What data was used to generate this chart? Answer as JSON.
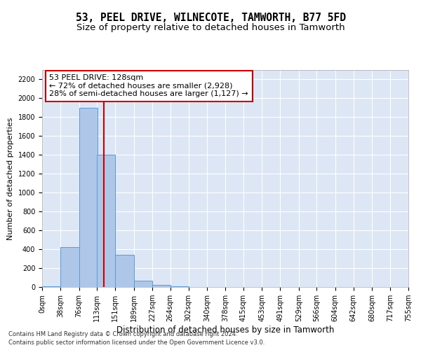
{
  "title": "53, PEEL DRIVE, WILNECOTE, TAMWORTH, B77 5FD",
  "subtitle": "Size of property relative to detached houses in Tamworth",
  "xlabel": "Distribution of detached houses by size in Tamworth",
  "ylabel": "Number of detached properties",
  "bin_edges": [
    0,
    38,
    76,
    113,
    151,
    189,
    227,
    264,
    302,
    340,
    378,
    415,
    453,
    491,
    529,
    566,
    604,
    642,
    680,
    717,
    755
  ],
  "bar_heights": [
    10,
    420,
    1900,
    1400,
    340,
    65,
    25,
    8,
    2,
    1,
    0,
    0,
    0,
    0,
    0,
    0,
    0,
    0,
    0,
    0
  ],
  "bar_color": "#aec6e8",
  "bar_edge_color": "#5a9bd4",
  "property_size": 128,
  "property_line_color": "#cc0000",
  "ylim": [
    0,
    2300
  ],
  "yticks": [
    0,
    200,
    400,
    600,
    800,
    1000,
    1200,
    1400,
    1600,
    1800,
    2000,
    2200
  ],
  "annotation_line1": "53 PEEL DRIVE: 128sqm",
  "annotation_line2": "← 72% of detached houses are smaller (2,928)",
  "annotation_line3": "28% of semi-detached houses are larger (1,127) →",
  "annotation_box_color": "#ffffff",
  "annotation_box_edge_color": "#cc0000",
  "footer_line1": "Contains HM Land Registry data © Crown copyright and database right 2024.",
  "footer_line2": "Contains public sector information licensed under the Open Government Licence v3.0.",
  "background_color": "#dce6f5",
  "fig_bg_color": "#ffffff",
  "title_fontsize": 10.5,
  "subtitle_fontsize": 9.5,
  "tick_label_fontsize": 7,
  "annotation_fontsize": 8,
  "ylabel_fontsize": 8,
  "xlabel_fontsize": 8.5
}
